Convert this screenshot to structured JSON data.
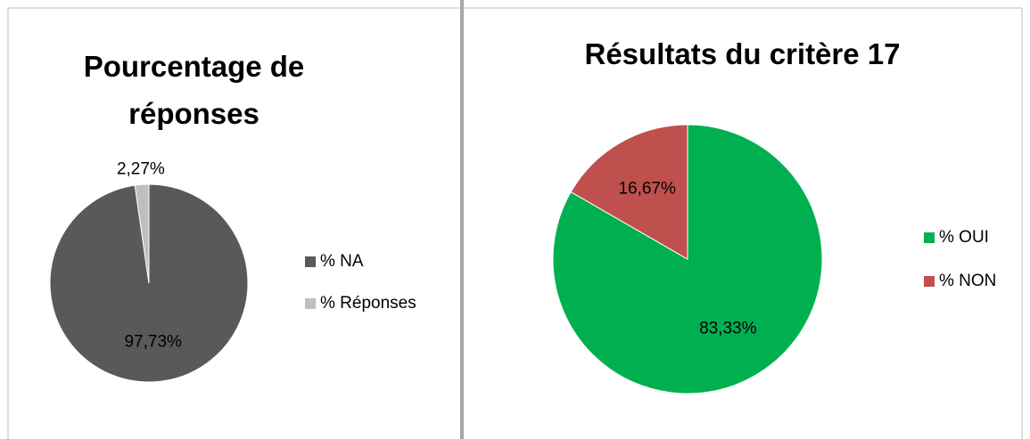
{
  "chart_data": [
    {
      "type": "pie",
      "title": "Pourcentage de réponses",
      "categories": [
        "% NA",
        "% Réponses"
      ],
      "values": [
        97.73,
        2.27
      ],
      "value_labels": [
        "97,73%",
        "2,27%"
      ],
      "colors": [
        "#595959",
        "#bfbfbf"
      ],
      "legend": "right"
    },
    {
      "type": "pie",
      "title": "Résultats du critère 17",
      "categories": [
        "% OUI",
        "% NON"
      ],
      "values": [
        83.33,
        16.67
      ],
      "value_labels": [
        "83,33%",
        "16,67%"
      ],
      "colors": [
        "#00b050",
        "#c0504d"
      ],
      "legend": "right"
    }
  ]
}
